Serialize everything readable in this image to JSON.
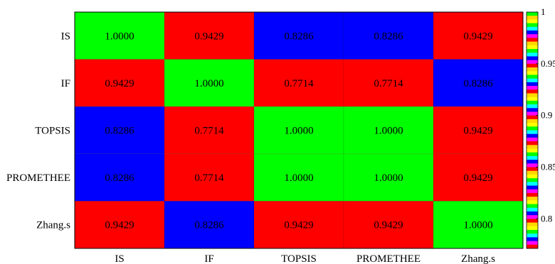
{
  "chart_data": {
    "type": "heatmap",
    "title": "",
    "xlabel": "",
    "ylabel": "",
    "x_categories": [
      "IS",
      "IF",
      "TOPSIS",
      "PROMETHEE",
      "Zhang.s"
    ],
    "y_categories": [
      "IS",
      "IF",
      "TOPSIS",
      "PROMETHEE",
      "Zhang.s"
    ],
    "values": [
      [
        "1.0000",
        "0.9429",
        "0.8286",
        "0.8286",
        "0.9429"
      ],
      [
        "0.9429",
        "1.0000",
        "0.7714",
        "0.7714",
        "0.8286"
      ],
      [
        "0.8286",
        "0.7714",
        "1.0000",
        "1.0000",
        "0.9429"
      ],
      [
        "0.8286",
        "0.7714",
        "1.0000",
        "1.0000",
        "0.9429"
      ],
      [
        "0.9429",
        "0.8286",
        "0.9429",
        "0.9429",
        "1.0000"
      ]
    ],
    "colorbar": {
      "range": [
        0.7714,
        1.0
      ],
      "ticks": [
        "0.8",
        "0.85",
        "0.9",
        "0.95",
        "1"
      ],
      "palette": [
        "#ff0000",
        "#ffd700",
        "#ffff00",
        "#00ff00",
        "#00ffff",
        "#0000ff",
        "#ff00ff"
      ],
      "top_color": "#00ff00",
      "bottom_color": "#ff0000"
    },
    "cell_colors": {
      "1.0000": "#00ff00",
      "0.9429": "#ff0000",
      "0.8286": "#0000ff",
      "0.7714": "#ff0000"
    },
    "legend": "colorbar-right",
    "grid": false
  }
}
